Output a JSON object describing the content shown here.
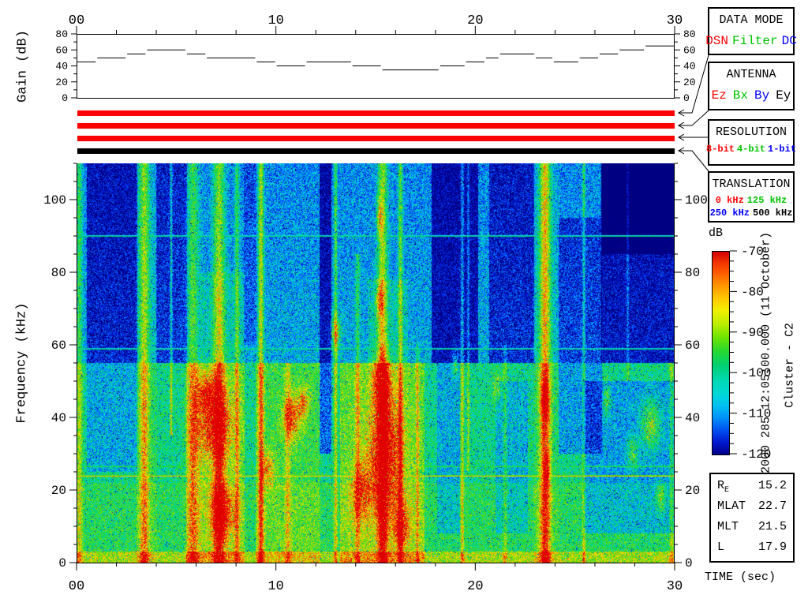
{
  "display": {
    "top_time_ticks": [
      "00",
      "10",
      "20",
      "30"
    ],
    "bottom_time_ticks": [
      "00",
      "10",
      "20",
      "30"
    ],
    "time_axis_label": "TIME (sec)",
    "freq_axis_label": "Frequency (kHz)",
    "gain_axis_label": "Gain (dB)"
  },
  "status_bars": {
    "colors": [
      "#ff0000",
      "#ff0000",
      "#ff0000",
      "#000000"
    ]
  },
  "info_boxes": {
    "data_mode": {
      "title": "DATA MODE",
      "items": [
        {
          "text": "DSN",
          "color": "#ff0000"
        },
        {
          "text": "Filter",
          "color": "#00c400"
        },
        {
          "text": "DC",
          "color": "#0000ff"
        }
      ]
    },
    "antenna": {
      "title": "ANTENNA",
      "items": [
        {
          "text": "Ez",
          "color": "#ff0000"
        },
        {
          "text": "Bx",
          "color": "#00c400"
        },
        {
          "text": "By",
          "color": "#0000ff"
        },
        {
          "text": "Ey",
          "color": "#000000"
        }
      ]
    },
    "resolution": {
      "title": "RESOLUTION",
      "items": [
        {
          "text": "8-bit",
          "color": "#ff0000"
        },
        {
          "text": "4-bit",
          "color": "#00c400"
        },
        {
          "text": "1-bit",
          "color": "#0000ff"
        }
      ]
    },
    "translation": {
      "title": "TRANSLATION",
      "row1": [
        {
          "text": "0 kHz",
          "color": "#ff0000"
        },
        {
          "text": "125 kHz",
          "color": "#00c400"
        }
      ],
      "row2": [
        {
          "text": "250 kHz",
          "color": "#0000ff"
        },
        {
          "text": "500 kHz",
          "color": "#000000"
        }
      ]
    }
  },
  "colorbar": {
    "label": "dB",
    "max": -70,
    "min": -120,
    "tick_values": [
      -70,
      -80,
      -90,
      -100,
      -110,
      -120
    ]
  },
  "side_text": {
    "timestamp": "2000 285 12:05:00.000 (11 October)",
    "spacecraft": "Cluster - C2"
  },
  "ephemeris": {
    "rows": [
      {
        "label": "R",
        "sub": "E",
        "value": "15.2"
      },
      {
        "label": "MLAT",
        "sub": "",
        "value": "22.7"
      },
      {
        "label": "MLT",
        "sub": "",
        "value": "21.5"
      },
      {
        "label": "L",
        "sub": "",
        "value": "17.9"
      }
    ]
  },
  "chart_data": {
    "type": "heatmap",
    "title": "Cluster - C2 wideband spectrogram, 2000 285 12:05:00.000 (11 October)",
    "xlabel": "TIME (sec)",
    "ylabel": "Frequency (kHz)",
    "x_range_sec": [
      0,
      30
    ],
    "y_range_khz": [
      0,
      110
    ],
    "x_major_ticks": [
      0,
      10,
      20,
      30
    ],
    "x_minor_step_sec": 2,
    "y_major_ticks": [
      0,
      20,
      40,
      60,
      80,
      100
    ],
    "y_minor_step_khz": 5,
    "colorbar_db": {
      "max": -70,
      "min": -120,
      "minor_step": 2.5
    },
    "gain_axis": {
      "ticks": [
        0,
        20,
        40,
        60,
        80
      ],
      "minor_step": 10
    },
    "gain_db_steps": [
      [
        0,
        45
      ],
      [
        1,
        50
      ],
      [
        2.5,
        55
      ],
      [
        3.5,
        60
      ],
      [
        5.5,
        55
      ],
      [
        6.5,
        50
      ],
      [
        9,
        45
      ],
      [
        10,
        40
      ],
      [
        11.5,
        45
      ],
      [
        13.8,
        40
      ],
      [
        15.3,
        35
      ],
      [
        18.2,
        40
      ],
      [
        19.5,
        45
      ],
      [
        20.5,
        50
      ],
      [
        21.2,
        55
      ],
      [
        23,
        50
      ],
      [
        23.9,
        45
      ],
      [
        25.2,
        50
      ],
      [
        26.2,
        55
      ],
      [
        27.2,
        60
      ],
      [
        28.5,
        65
      ],
      [
        30,
        65
      ]
    ],
    "features": {
      "horizontal_lines_khz": [
        {
          "f": 24,
          "level": 0.8
        },
        {
          "f": 26.5,
          "level": 0.55
        },
        {
          "f": 59,
          "level": 0.46
        },
        {
          "f": 90,
          "level": 0.46
        }
      ],
      "regions": [
        [
          0.5,
          3.0,
          55,
          110,
          -0.22
        ],
        [
          0.5,
          3.0,
          25,
          55,
          -0.14
        ],
        [
          4.0,
          5.5,
          55,
          110,
          -0.18
        ],
        [
          8.4,
          9.0,
          60,
          110,
          -0.1
        ],
        [
          12.2,
          12.75,
          30,
          110,
          -0.26
        ],
        [
          17.8,
          20.1,
          55,
          110,
          -0.26
        ],
        [
          18.1,
          19.2,
          8,
          55,
          -0.14
        ],
        [
          20.7,
          22.9,
          55,
          110,
          -0.2
        ],
        [
          21.0,
          22.6,
          8,
          50,
          -0.12
        ],
        [
          24.2,
          26.3,
          30,
          95,
          -0.16
        ],
        [
          26.3,
          30,
          85,
          110,
          -0.4
        ],
        [
          26.3,
          30,
          55,
          85,
          -0.24
        ],
        [
          25.4,
          30,
          8,
          50,
          -0.16
        ],
        [
          5.5,
          8.4,
          0,
          55,
          0.14
        ],
        [
          9.0,
          12.2,
          0,
          55,
          0.1
        ],
        [
          13.2,
          17.4,
          0,
          55,
          0.16
        ],
        [
          6.2,
          8.4,
          55,
          80,
          0.08
        ],
        [
          14.6,
          16.6,
          55,
          78,
          0.08
        ],
        [
          0,
          30,
          0,
          3,
          0.18
        ],
        [
          3.0,
          4.0,
          0,
          110,
          0.05
        ],
        [
          22.9,
          24.2,
          0,
          110,
          0.04
        ]
      ],
      "streaks": [
        [
          0.15,
          0.15,
          0.25,
          0,
          110
        ],
        [
          3.4,
          0.25,
          0.35,
          0,
          110
        ],
        [
          4.75,
          0.06,
          0.3,
          35,
          110
        ],
        [
          5.85,
          0.3,
          0.28,
          0,
          110
        ],
        [
          7.15,
          0.3,
          0.38,
          0,
          110
        ],
        [
          8.05,
          0.12,
          0.25,
          0,
          110
        ],
        [
          9.25,
          0.15,
          0.42,
          0,
          110
        ],
        [
          10.6,
          0.15,
          0.2,
          0,
          55
        ],
        [
          13.0,
          0.08,
          0.3,
          0,
          110
        ],
        [
          14.1,
          0.12,
          0.22,
          0,
          85
        ],
        [
          15.35,
          0.25,
          0.4,
          0,
          110
        ],
        [
          16.25,
          0.12,
          0.32,
          0,
          110
        ],
        [
          17.1,
          0.08,
          0.2,
          0,
          60
        ],
        [
          19.35,
          0.08,
          0.28,
          0,
          110
        ],
        [
          19.65,
          0.06,
          0.22,
          25,
          110
        ],
        [
          21.5,
          0.1,
          0.18,
          0,
          60
        ],
        [
          23.5,
          0.28,
          0.5,
          0,
          110
        ],
        [
          25.45,
          0.07,
          0.26,
          0,
          110
        ],
        [
          27.65,
          0.06,
          0.18,
          50,
          110
        ],
        [
          29.85,
          0.1,
          0.22,
          0,
          55
        ]
      ],
      "blobs": [
        [
          6.9,
          38,
          0.9,
          10,
          0.45
        ],
        [
          7.3,
          14,
          0.6,
          7,
          0.4
        ],
        [
          6.5,
          47,
          0.4,
          5,
          0.35
        ],
        [
          9.6,
          26,
          0.35,
          5,
          0.3
        ],
        [
          10.8,
          40,
          0.45,
          6,
          0.38
        ],
        [
          11.4,
          44,
          0.3,
          4,
          0.3
        ],
        [
          13.0,
          63,
          0.25,
          5,
          0.35
        ],
        [
          14.3,
          20,
          0.5,
          8,
          0.3
        ],
        [
          15.5,
          30,
          0.8,
          16,
          0.55
        ],
        [
          15.3,
          50,
          0.45,
          7,
          0.42
        ],
        [
          15.2,
          72,
          0.2,
          5,
          0.3
        ],
        [
          15.2,
          95,
          0.15,
          5,
          0.28
        ],
        [
          16.3,
          10,
          0.4,
          6,
          0.35
        ],
        [
          19.0,
          55,
          0.15,
          4,
          0.25
        ],
        [
          21.1,
          48,
          0.2,
          4,
          0.28
        ],
        [
          23.5,
          45,
          0.2,
          5,
          0.38
        ],
        [
          23.6,
          25,
          0.15,
          4,
          0.3
        ],
        [
          26.6,
          45,
          0.2,
          5,
          0.25
        ],
        [
          28.8,
          38,
          0.5,
          7,
          0.32
        ],
        [
          29.3,
          18,
          0.25,
          4,
          0.28
        ],
        [
          27.9,
          30,
          0.3,
          5,
          0.25
        ]
      ]
    }
  }
}
